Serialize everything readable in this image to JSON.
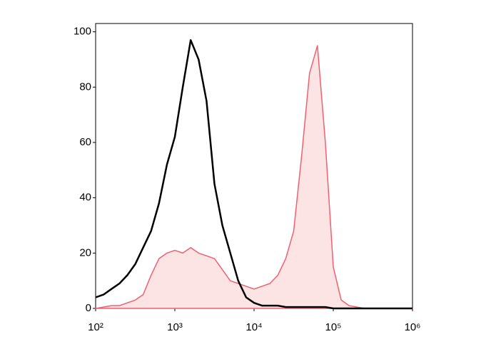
{
  "chart_data": {
    "type": "line",
    "xscale": "log",
    "x": [
      100,
      126,
      158,
      200,
      251,
      316,
      398,
      501,
      631,
      794,
      1000,
      1259,
      1585,
      1995,
      2512,
      3162,
      3981,
      5012,
      6310,
      7943,
      10000,
      12589,
      15849,
      19953,
      25119,
      31623,
      39811,
      50119,
      63096,
      79433,
      100000,
      125893,
      158489,
      199526,
      251189,
      316228,
      398107,
      501187,
      630957,
      794328,
      1000000
    ],
    "series": [
      {
        "color": "#000000",
        "values": [
          4,
          5,
          7,
          9,
          12,
          16,
          22,
          28,
          38,
          52,
          62,
          80,
          97,
          90,
          75,
          45,
          30,
          20,
          10,
          4,
          2,
          1,
          1,
          1,
          0.5,
          0.5,
          0.5,
          0.5,
          0.5,
          0.5,
          0,
          0,
          0,
          0,
          0,
          0,
          0,
          0,
          0,
          0,
          0
        ]
      },
      {
        "color": "#f06070",
        "fill": "#fde4e4",
        "values": [
          0,
          0.5,
          1,
          1,
          2,
          3,
          5,
          12,
          18,
          20,
          21,
          20,
          22,
          20,
          19,
          18,
          14,
          10,
          9,
          8,
          7,
          8,
          9,
          12,
          18,
          28,
          55,
          85,
          95,
          60,
          15,
          3,
          1,
          0.5,
          0,
          0,
          0,
          0,
          0,
          0,
          0
        ]
      }
    ],
    "xlim": [
      100,
      1000000
    ],
    "xticks": [
      {
        "value": 100,
        "label": "10²"
      },
      {
        "value": 1000,
        "label": "10³"
      },
      {
        "value": 10000,
        "label": "10⁴"
      },
      {
        "value": 100000,
        "label": "10⁵"
      },
      {
        "value": 1000000,
        "label": "10⁶"
      }
    ],
    "ylim": [
      0,
      103
    ],
    "yticks": [
      0,
      20,
      40,
      60,
      80,
      100
    ],
    "grid": false
  }
}
